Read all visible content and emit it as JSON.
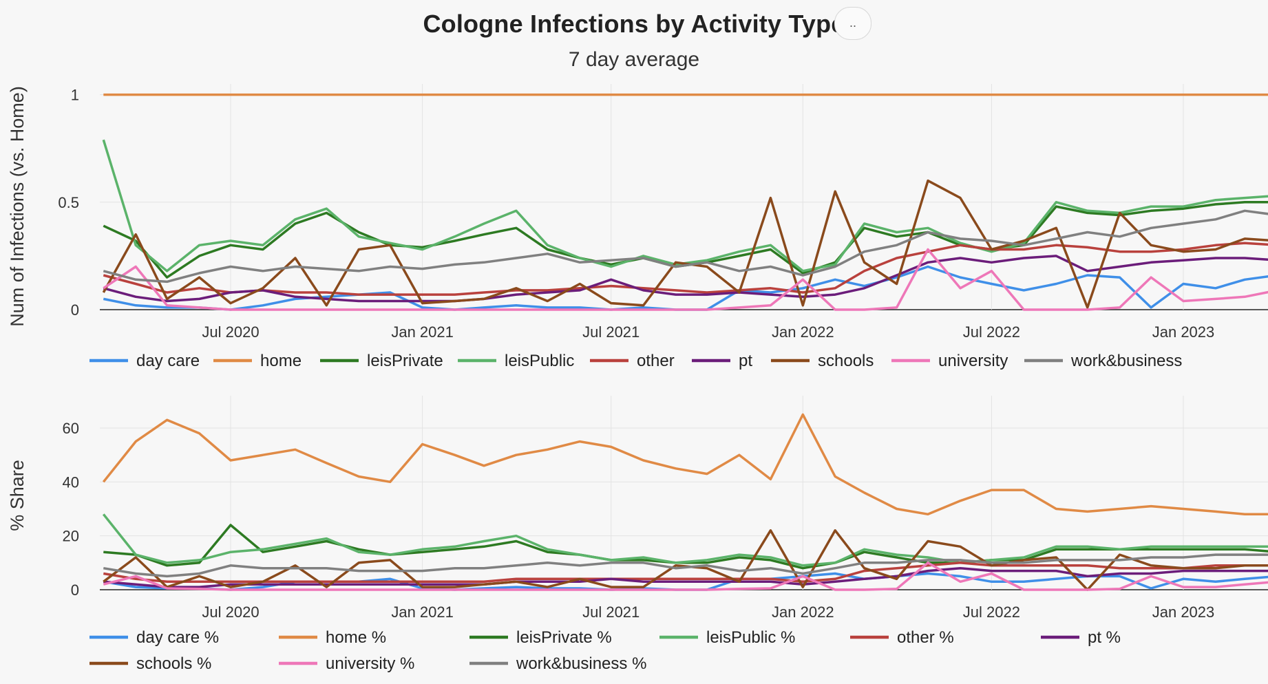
{
  "title": "Cologne Infections by Activity Type",
  "subtitle": "7 day average",
  "menu_label": "..",
  "colors": {
    "day care": "#3f8fe8",
    "home": "#e08a45",
    "leisPrivate": "#2d7a22",
    "leisPublic": "#5bb36a",
    "other": "#b9413d",
    "pt": "#6b1d7a",
    "schools": "#8a4a1c",
    "university": "#ee77b8",
    "work&business": "#808080"
  },
  "chart_data": [
    {
      "type": "line",
      "ylabel": "Num of Infections (vs. Home)",
      "yticks": [
        0,
        0.5,
        1
      ],
      "ylim": [
        0,
        1.05
      ],
      "x_tick_labels": [
        "Jul 2020",
        "Jan 2021",
        "Jul 2021",
        "Jan 2022",
        "Jul 2022",
        "Jan 2023"
      ],
      "x_tick_dates": [
        "2020-07-01",
        "2021-01-01",
        "2021-07-01",
        "2022-01-01",
        "2022-07-01",
        "2023-01-01"
      ],
      "x": [
        "2020-03-01",
        "2020-04-01",
        "2020-05-01",
        "2020-06-01",
        "2020-07-01",
        "2020-08-01",
        "2020-09-01",
        "2020-10-01",
        "2020-11-01",
        "2020-12-01",
        "2021-01-01",
        "2021-02-01",
        "2021-03-01",
        "2021-04-01",
        "2021-05-01",
        "2021-06-01",
        "2021-07-01",
        "2021-08-01",
        "2021-09-01",
        "2021-10-01",
        "2021-11-01",
        "2021-12-01",
        "2022-01-01",
        "2022-02-01",
        "2022-03-01",
        "2022-04-01",
        "2022-05-01",
        "2022-06-01",
        "2022-07-01",
        "2022-08-01",
        "2022-09-01",
        "2022-10-01",
        "2022-11-01",
        "2022-12-01",
        "2023-01-01",
        "2023-02-01",
        "2023-03-01",
        "2023-04-01"
      ],
      "grid": true,
      "legend": "bottom",
      "series": [
        {
          "name": "day care",
          "values": [
            0.05,
            0.02,
            0.01,
            0.01,
            0.0,
            0.02,
            0.05,
            0.06,
            0.07,
            0.08,
            0.01,
            0.0,
            0.01,
            0.02,
            0.01,
            0.01,
            0.0,
            0.01,
            0.0,
            0.0,
            0.09,
            0.08,
            0.1,
            0.14,
            0.11,
            0.15,
            0.2,
            0.15,
            0.12,
            0.09,
            0.12,
            0.16,
            0.15,
            0.01,
            0.12,
            0.1,
            0.14,
            0.16
          ]
        },
        {
          "name": "home",
          "values": [
            1,
            1,
            1,
            1,
            1,
            1,
            1,
            1,
            1,
            1,
            1,
            1,
            1,
            1,
            1,
            1,
            1,
            1,
            1,
            1,
            1,
            1,
            1,
            1,
            1,
            1,
            1,
            1,
            1,
            1,
            1,
            1,
            1,
            1,
            1,
            1,
            1,
            1
          ]
        },
        {
          "name": "leisPrivate",
          "values": [
            0.39,
            0.32,
            0.15,
            0.25,
            0.3,
            0.28,
            0.4,
            0.45,
            0.36,
            0.3,
            0.29,
            0.32,
            0.35,
            0.38,
            0.28,
            0.24,
            0.21,
            0.24,
            0.2,
            0.22,
            0.25,
            0.28,
            0.17,
            0.22,
            0.38,
            0.34,
            0.36,
            0.3,
            0.28,
            0.3,
            0.48,
            0.45,
            0.44,
            0.46,
            0.47,
            0.49,
            0.5,
            0.5
          ]
        },
        {
          "name": "leisPublic",
          "values": [
            0.79,
            0.3,
            0.18,
            0.3,
            0.32,
            0.3,
            0.42,
            0.47,
            0.34,
            0.31,
            0.28,
            0.34,
            0.4,
            0.46,
            0.3,
            0.24,
            0.2,
            0.25,
            0.21,
            0.23,
            0.27,
            0.3,
            0.18,
            0.21,
            0.4,
            0.36,
            0.38,
            0.31,
            0.27,
            0.31,
            0.5,
            0.46,
            0.45,
            0.48,
            0.48,
            0.51,
            0.52,
            0.53
          ]
        },
        {
          "name": "other",
          "values": [
            0.16,
            0.12,
            0.08,
            0.1,
            0.08,
            0.09,
            0.08,
            0.08,
            0.07,
            0.07,
            0.07,
            0.07,
            0.08,
            0.09,
            0.09,
            0.1,
            0.11,
            0.1,
            0.09,
            0.08,
            0.09,
            0.1,
            0.08,
            0.1,
            0.18,
            0.24,
            0.27,
            0.3,
            0.28,
            0.28,
            0.3,
            0.29,
            0.27,
            0.27,
            0.28,
            0.3,
            0.31,
            0.3
          ]
        },
        {
          "name": "pt",
          "values": [
            0.1,
            0.06,
            0.04,
            0.05,
            0.08,
            0.09,
            0.06,
            0.05,
            0.04,
            0.04,
            0.04,
            0.04,
            0.05,
            0.07,
            0.08,
            0.09,
            0.14,
            0.09,
            0.07,
            0.07,
            0.08,
            0.07,
            0.06,
            0.07,
            0.1,
            0.16,
            0.22,
            0.24,
            0.22,
            0.24,
            0.25,
            0.18,
            0.2,
            0.22,
            0.23,
            0.24,
            0.24,
            0.23
          ]
        },
        {
          "name": "schools",
          "values": [
            0.08,
            0.35,
            0.05,
            0.15,
            0.03,
            0.1,
            0.24,
            0.02,
            0.28,
            0.3,
            0.03,
            0.04,
            0.05,
            0.1,
            0.04,
            0.12,
            0.03,
            0.02,
            0.22,
            0.2,
            0.08,
            0.52,
            0.02,
            0.55,
            0.22,
            0.12,
            0.6,
            0.52,
            0.28,
            0.32,
            0.38,
            0.01,
            0.45,
            0.3,
            0.27,
            0.28,
            0.33,
            0.32
          ]
        },
        {
          "name": "university",
          "values": [
            0.1,
            0.2,
            0.02,
            0.01,
            0.0,
            0.0,
            0.0,
            0.0,
            0.0,
            0.0,
            0.0,
            0.0,
            0.0,
            0.0,
            0.0,
            0.0,
            0.0,
            0.0,
            0.0,
            0.0,
            0.01,
            0.02,
            0.14,
            0.0,
            0.0,
            0.01,
            0.28,
            0.1,
            0.18,
            0.0,
            0.0,
            0.0,
            0.01,
            0.15,
            0.04,
            0.05,
            0.06,
            0.09
          ]
        },
        {
          "name": "work&business",
          "values": [
            0.18,
            0.14,
            0.13,
            0.17,
            0.2,
            0.18,
            0.2,
            0.19,
            0.18,
            0.2,
            0.19,
            0.21,
            0.22,
            0.24,
            0.26,
            0.22,
            0.23,
            0.24,
            0.2,
            0.22,
            0.18,
            0.2,
            0.16,
            0.2,
            0.27,
            0.3,
            0.36,
            0.33,
            0.32,
            0.3,
            0.33,
            0.36,
            0.34,
            0.38,
            0.4,
            0.42,
            0.46,
            0.44
          ]
        }
      ]
    },
    {
      "type": "line",
      "ylabel": "% Share",
      "yticks": [
        0,
        20,
        40,
        60
      ],
      "ylim": [
        0,
        72
      ],
      "x_tick_labels": [
        "Jul 2020",
        "Jan 2021",
        "Jul 2021",
        "Jan 2022",
        "Jul 2022",
        "Jan 2023"
      ],
      "x_tick_dates": [
        "2020-07-01",
        "2021-01-01",
        "2021-07-01",
        "2022-01-01",
        "2022-07-01",
        "2023-01-01"
      ],
      "x": [
        "2020-03-01",
        "2020-04-01",
        "2020-05-01",
        "2020-06-01",
        "2020-07-01",
        "2020-08-01",
        "2020-09-01",
        "2020-10-01",
        "2020-11-01",
        "2020-12-01",
        "2021-01-01",
        "2021-02-01",
        "2021-03-01",
        "2021-04-01",
        "2021-05-01",
        "2021-06-01",
        "2021-07-01",
        "2021-08-01",
        "2021-09-01",
        "2021-10-01",
        "2021-11-01",
        "2021-12-01",
        "2022-01-01",
        "2022-02-01",
        "2022-03-01",
        "2022-04-01",
        "2022-05-01",
        "2022-06-01",
        "2022-07-01",
        "2022-08-01",
        "2022-09-01",
        "2022-10-01",
        "2022-11-01",
        "2022-12-01",
        "2023-01-01",
        "2023-02-01",
        "2023-03-01",
        "2023-04-01"
      ],
      "grid": true,
      "legend": "bottom",
      "series": [
        {
          "name": "day care %",
          "values": [
            3,
            1,
            0.5,
            0.5,
            0,
            1,
            3,
            3,
            3,
            4,
            0.5,
            0,
            0.5,
            1,
            0.5,
            0.5,
            0,
            0.5,
            0,
            0,
            4,
            4,
            5,
            6,
            4,
            5,
            6,
            5,
            3,
            3,
            4,
            5,
            5,
            0.5,
            4,
            3,
            4,
            5
          ]
        },
        {
          "name": "home %",
          "values": [
            40,
            55,
            63,
            58,
            48,
            50,
            52,
            47,
            42,
            40,
            54,
            50,
            46,
            50,
            52,
            55,
            53,
            48,
            45,
            43,
            50,
            41,
            65,
            42,
            36,
            30,
            28,
            33,
            37,
            37,
            30,
            29,
            30,
            31,
            30,
            29,
            28,
            28
          ]
        },
        {
          "name": "leisPrivate %",
          "values": [
            14,
            13,
            9,
            10,
            24,
            14,
            16,
            18,
            15,
            13,
            14,
            15,
            16,
            18,
            14,
            13,
            11,
            11,
            10,
            10,
            12,
            11,
            8,
            10,
            14,
            12,
            10,
            10,
            11,
            11,
            15,
            15,
            15,
            15,
            15,
            15,
            15,
            14
          ]
        },
        {
          "name": "leisPublic %",
          "values": [
            28,
            13,
            10,
            11,
            14,
            15,
            17,
            19,
            14,
            13,
            15,
            16,
            18,
            20,
            15,
            13,
            11,
            12,
            10,
            11,
            13,
            12,
            9,
            10,
            15,
            13,
            12,
            10,
            11,
            12,
            16,
            16,
            15,
            16,
            16,
            16,
            16,
            16
          ]
        },
        {
          "name": "other %",
          "values": [
            6,
            4,
            3,
            3,
            3,
            3,
            3,
            3,
            3,
            3,
            3,
            3,
            3,
            4,
            4,
            4,
            4,
            4,
            4,
            4,
            4,
            4,
            3,
            4,
            7,
            8,
            9,
            10,
            9,
            9,
            9,
            9,
            8,
            8,
            8,
            9,
            9,
            9
          ]
        },
        {
          "name": "pt %",
          "values": [
            3,
            2,
            1,
            1,
            2,
            2,
            2,
            2,
            2,
            2,
            2,
            2,
            2,
            3,
            3,
            3,
            4,
            3,
            3,
            3,
            3,
            3,
            2,
            3,
            4,
            5,
            7,
            8,
            7,
            7,
            7,
            5,
            6,
            6,
            7,
            7,
            7,
            7
          ]
        },
        {
          "name": "schools %",
          "values": [
            3,
            12,
            1,
            5,
            1,
            3,
            9,
            1,
            10,
            11,
            1,
            1,
            2,
            3,
            1,
            4,
            1,
            1,
            9,
            8,
            3,
            22,
            1,
            22,
            8,
            4,
            18,
            16,
            9,
            11,
            12,
            0,
            13,
            9,
            8,
            8,
            9,
            9
          ]
        },
        {
          "name": "university %",
          "values": [
            2,
            5,
            0.5,
            0.3,
            0,
            0,
            0,
            0,
            0,
            0,
            0,
            0,
            0,
            0,
            0,
            0,
            0,
            0,
            0,
            0,
            0.3,
            0.5,
            5,
            0,
            0,
            0.3,
            10,
            3,
            6,
            0,
            0,
            0,
            0.3,
            5,
            1,
            1,
            2,
            3
          ]
        },
        {
          "name": "work&business %",
          "values": [
            8,
            6,
            5,
            6,
            9,
            8,
            8,
            8,
            7,
            7,
            7,
            8,
            8,
            9,
            10,
            9,
            10,
            10,
            8,
            9,
            7,
            8,
            6,
            8,
            10,
            10,
            11,
            11,
            10,
            10,
            11,
            11,
            11,
            12,
            12,
            13,
            13,
            13
          ]
        }
      ]
    }
  ],
  "legends": [
    [
      "day care",
      "home",
      "leisPrivate",
      "leisPublic",
      "other",
      "pt",
      "schools",
      "university",
      "work&business"
    ],
    [
      "day care %",
      "home %",
      "leisPrivate %",
      "leisPublic %",
      "other %",
      "pt %",
      "schools %",
      "university %",
      "work&business %"
    ]
  ]
}
